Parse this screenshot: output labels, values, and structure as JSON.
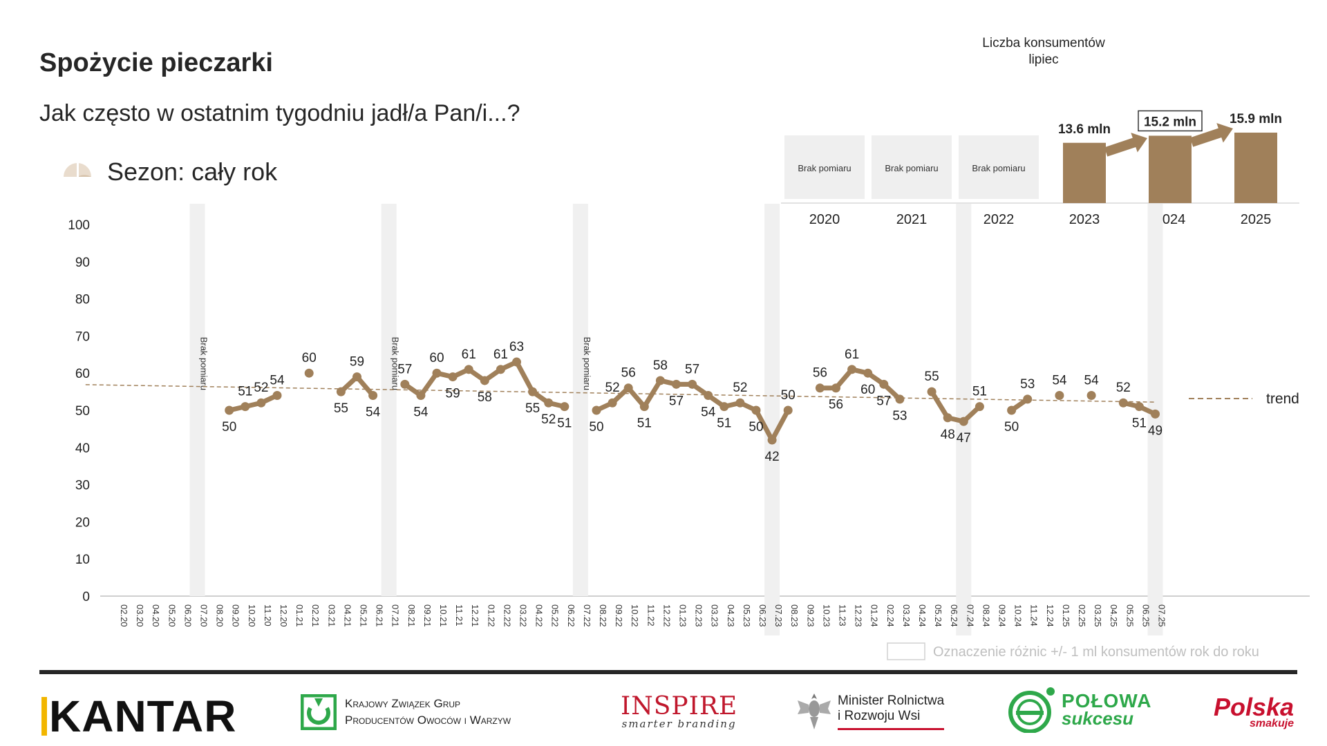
{
  "header": {
    "title": "Spożycie pieczarki",
    "question": "Jak często w ostatnim tygodniu jadł/a Pan/i...?",
    "season": "Sezon: cały rok"
  },
  "consumers_panel": {
    "title_line1": "Liczba konsumentów",
    "title_line2": "lipiec",
    "no_measure": "Brak pomiaru",
    "years": [
      "2020",
      "2021",
      "2022",
      "2023",
      "2024",
      "2025"
    ],
    "values": [
      null,
      null,
      null,
      13.6,
      15.2,
      15.9
    ],
    "value_labels": [
      "",
      "",
      "",
      "13.6 mln",
      "15.2 mln",
      "15.9 mln"
    ],
    "highlighted": "15.2 mln"
  },
  "legend": {
    "trend": "trend",
    "difference_note": "Oznaczenie różnic +/- 1 ml konsumentów rok do roku"
  },
  "chart_data": {
    "type": "line",
    "y_axis": {
      "ylim": [
        0,
        100
      ],
      "ticks": [
        0,
        10,
        20,
        30,
        40,
        50,
        60,
        70,
        80,
        90,
        100
      ]
    },
    "x": [
      "02.20",
      "03.20",
      "04.20",
      "05.20",
      "06.20",
      "07.20",
      "08.20",
      "09.20",
      "10.20",
      "11.20",
      "12.20",
      "01.21",
      "02.21",
      "03.21",
      "04.21",
      "05.21",
      "06.21",
      "07.21",
      "08.21",
      "09.21",
      "10.21",
      "11.21",
      "12.21",
      "01.22",
      "02.22",
      "03.22",
      "04.22",
      "05.22",
      "06.22",
      "07.22",
      "08.22",
      "09.22",
      "10.22",
      "11.22",
      "12.22",
      "01.23",
      "02.23",
      "03.23",
      "04.23",
      "05.23",
      "06.23",
      "07.23",
      "08.23",
      "09.23",
      "10.23",
      "11.23",
      "12.23",
      "01.24",
      "02.24",
      "03.24",
      "04.24",
      "05.24",
      "06.24",
      "07.24",
      "08.24",
      "09.24",
      "10.24",
      "11.24",
      "12.24",
      "01.25",
      "02.25",
      "03.25",
      "04.25",
      "05.25",
      "06.25",
      "07.25"
    ],
    "values": [
      null,
      null,
      null,
      null,
      null,
      null,
      null,
      50,
      51,
      52,
      54,
      null,
      60,
      null,
      55,
      59,
      54,
      null,
      57,
      54,
      60,
      59,
      61,
      58,
      61,
      63,
      55,
      52,
      51,
      null,
      50,
      52,
      56,
      51,
      58,
      57,
      57,
      54,
      51,
      52,
      50,
      42,
      50,
      null,
      56,
      56,
      61,
      60,
      57,
      53,
      null,
      55,
      48,
      47,
      51,
      null,
      50,
      53,
      null,
      54,
      null,
      54,
      null,
      52,
      51,
      49
    ],
    "trend": {
      "start": 56.9,
      "end": 52.2
    },
    "no_measure_months": [
      "07.20",
      "07.21",
      "07.22"
    ],
    "no_measure_label": "Brak pomiaru",
    "highlight_months": [
      "07.23",
      "07.24",
      "07.25"
    ],
    "grid": false,
    "color": "#a0805a",
    "trend_color": "#a0805a"
  }
}
